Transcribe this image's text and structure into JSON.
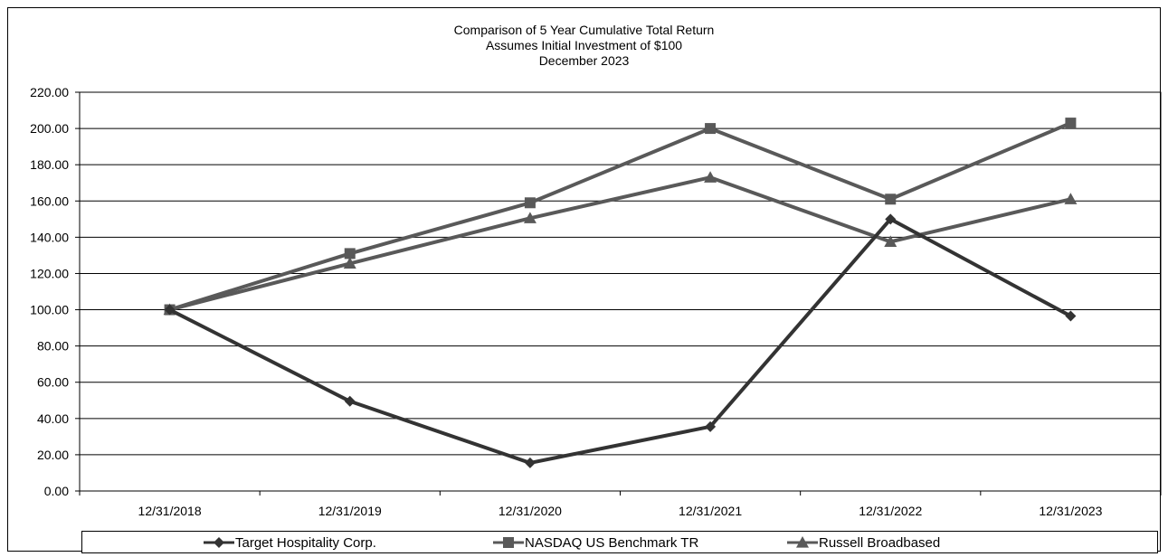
{
  "chart_data": {
    "type": "line",
    "title_lines": [
      "Comparison of 5 Year Cumulative Total Return",
      "Assumes Initial Investment of $100",
      "December 2023"
    ],
    "categories": [
      "12/31/2018",
      "12/31/2019",
      "12/31/2020",
      "12/31/2021",
      "12/31/2022",
      "12/31/2023"
    ],
    "ylim": [
      0,
      220
    ],
    "y_ticks": [
      0,
      20,
      40,
      60,
      80,
      100,
      120,
      140,
      160,
      180,
      200,
      220
    ],
    "y_tick_labels": [
      "0.00",
      "20.00",
      "40.00",
      "60.00",
      "80.00",
      "100.00",
      "120.00",
      "140.00",
      "160.00",
      "180.00",
      "200.00",
      "220.00"
    ],
    "grid": true,
    "legend_position": "bottom",
    "series": [
      {
        "name": "Target Hospitality Corp.",
        "marker": "diamond",
        "color": "#333333",
        "values": [
          100,
          49.5,
          15.5,
          35.5,
          150,
          96.5
        ]
      },
      {
        "name": "NASDAQ US Benchmark TR",
        "marker": "square",
        "color": "#595959",
        "values": [
          100,
          131,
          159,
          200,
          161,
          203
        ]
      },
      {
        "name": "Russell Broadbased",
        "marker": "triangle",
        "color": "#595959",
        "values": [
          100,
          125.5,
          150.5,
          173,
          137.5,
          161
        ]
      }
    ]
  }
}
